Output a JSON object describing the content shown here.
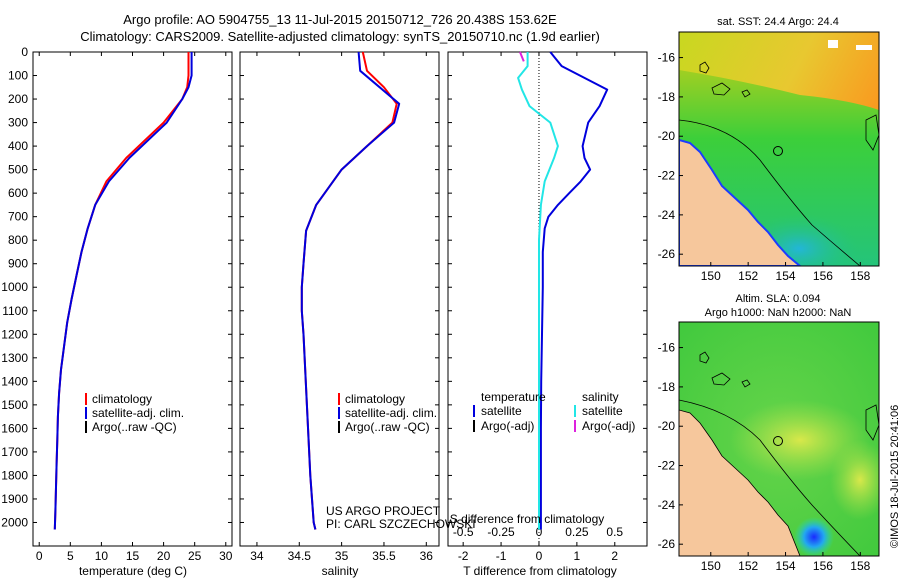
{
  "title": {
    "line1": "Argo profile: AO 5904755_13 11-Jul-2015 20150712_726 20.438S 153.62E",
    "line2": "Climatology: CARS2009. Satellite-adjusted climatology: synTS_20150710.nc (1.9d earlier)"
  },
  "side_stamp": "©IMOS 18-Jul-2015 20:41:06",
  "colors": {
    "climatology": "#ff0000",
    "satellite": "#0000dd",
    "argo": "#000000",
    "salinity_satellite": "#22e6e6",
    "salinity_argo": "#dd22dd",
    "land": "#f6c79c"
  },
  "chart_data": [
    {
      "id": "temperature",
      "type": "line",
      "xlabel": "temperature (deg C)",
      "ylabel": "",
      "xlim": [
        -1,
        31
      ],
      "ylim": [
        2100,
        0
      ],
      "xticks": [
        0,
        5,
        10,
        15,
        20,
        25,
        30
      ],
      "xtick_labels": [
        "0",
        "5",
        "10",
        "15",
        "20",
        "25",
        "30"
      ],
      "yticks": [
        0,
        100,
        200,
        300,
        400,
        500,
        600,
        700,
        800,
        900,
        1000,
        1100,
        1200,
        1300,
        1400,
        1500,
        1600,
        1700,
        1800,
        1900,
        2000
      ],
      "ytick_labels": [
        "0",
        "100",
        "200",
        "300",
        "400",
        "500",
        "600",
        "700",
        "800",
        "900",
        "1000",
        "1100",
        "1200",
        "1300",
        "1400",
        "1500",
        "1600",
        "1700",
        "1800",
        "1900",
        "2000"
      ],
      "legend": [
        "climatology",
        "satellite-adj. clim.",
        "Argo(..raw -QC)"
      ],
      "legend_position": "lower-center",
      "series": [
        {
          "name": "climatology",
          "color": "#ff0000",
          "x": [
            24.0,
            24.0,
            23.8,
            23.0,
            20.0,
            14.0,
            10.8,
            9.0,
            7.8,
            6.8,
            6.0,
            5.2,
            4.5,
            4.0,
            3.5,
            3.2,
            3.0,
            2.9,
            2.8,
            2.7,
            2.6,
            2.5
          ],
          "y": [
            0,
            100,
            150,
            200,
            300,
            450,
            550,
            650,
            750,
            850,
            950,
            1050,
            1150,
            1250,
            1350,
            1450,
            1550,
            1650,
            1750,
            1850,
            1950,
            2030
          ]
        },
        {
          "name": "satellite-adj. clim.",
          "color": "#0000dd",
          "x": [
            24.5,
            24.5,
            24.0,
            23.0,
            20.5,
            14.5,
            11.2,
            9.0,
            7.8,
            6.8,
            6.0,
            5.2,
            4.5,
            4.0,
            3.5,
            3.2,
            3.0,
            2.9,
            2.8,
            2.7,
            2.6,
            2.5
          ],
          "y": [
            0,
            100,
            150,
            200,
            300,
            450,
            550,
            650,
            750,
            850,
            950,
            1050,
            1150,
            1250,
            1350,
            1450,
            1550,
            1650,
            1750,
            1850,
            1950,
            2030
          ]
        }
      ]
    },
    {
      "id": "salinity",
      "type": "line",
      "xlabel": "salinity",
      "ylabel": "",
      "xlim": [
        33.8,
        36.15
      ],
      "ylim": [
        2100,
        0
      ],
      "xticks": [
        34,
        34.5,
        35,
        35.5,
        36
      ],
      "xtick_labels": [
        "34",
        "34.5",
        "35",
        "35.5",
        "36"
      ],
      "legend": [
        "climatology",
        "satellite-adj. clim.",
        "Argo(..raw -QC)"
      ],
      "legend_position": "lower-right",
      "annotation": [
        "US ARGO PROJECT",
        "PI: CARL SZCZECHOWSKI"
      ],
      "series": [
        {
          "name": "climatology",
          "color": "#ff0000",
          "x": [
            35.25,
            35.3,
            35.5,
            35.65,
            35.6,
            35.3,
            35.0,
            34.7,
            34.58,
            34.55,
            34.53,
            34.53,
            34.55,
            34.57,
            34.59,
            34.61,
            34.63,
            34.65,
            34.67,
            34.69
          ],
          "y": [
            0,
            80,
            150,
            220,
            300,
            400,
            500,
            650,
            760,
            900,
            1000,
            1100,
            1200,
            1350,
            1500,
            1650,
            1800,
            1900,
            2000,
            2030
          ]
        },
        {
          "name": "satellite-adj. clim.",
          "color": "#0000dd",
          "x": [
            35.2,
            35.22,
            35.45,
            35.68,
            35.62,
            35.3,
            35.0,
            34.7,
            34.58,
            34.55,
            34.53,
            34.53,
            34.55,
            34.57,
            34.59,
            34.61,
            34.63,
            34.65,
            34.67,
            34.69
          ],
          "y": [
            0,
            80,
            150,
            220,
            300,
            400,
            500,
            650,
            760,
            900,
            1000,
            1100,
            1200,
            1350,
            1500,
            1650,
            1800,
            1900,
            2000,
            2030
          ]
        }
      ]
    },
    {
      "id": "difference",
      "type": "line",
      "xlabel": "T difference from climatology",
      "xlabel2": "S difference from climatology",
      "xlim": [
        -2.4,
        2.85
      ],
      "ylim": [
        2100,
        0
      ],
      "xticks": [
        -2,
        -1,
        0,
        1,
        2
      ],
      "xtick_labels": [
        "-2",
        "-1",
        "0",
        "1",
        "2"
      ],
      "xticks2": [
        -2,
        -1,
        0,
        1,
        2
      ],
      "xtick_labels2": [
        "-0.5",
        "-0.25",
        "0",
        "0.25",
        "0.5"
      ],
      "legend_left": [
        "temperature",
        "satellite",
        "Argo(-adj)"
      ],
      "legend_right": [
        "salinity",
        "satellite",
        "Argo(-adj)"
      ],
      "legend_position": "lower-center",
      "series": [
        {
          "name": "temperature satellite",
          "color": "#0000dd",
          "x": [
            0.3,
            0.4,
            0.6,
            1.8,
            1.6,
            1.3,
            1.15,
            1.2,
            1.35,
            1.1,
            0.8,
            0.5,
            0.25,
            0.15,
            0.1,
            0.1,
            0.08,
            0.06,
            0.05,
            0.05,
            0.05,
            0.05
          ],
          "y": [
            0,
            20,
            60,
            160,
            230,
            300,
            400,
            450,
            500,
            550,
            600,
            650,
            700,
            750,
            850,
            1000,
            1200,
            1400,
            1600,
            1800,
            2000,
            2030
          ]
        },
        {
          "name": "salinity satellite",
          "color": "#22e6e6",
          "x": [
            -0.3,
            -0.3,
            -0.55,
            -0.45,
            -0.25,
            0.3,
            0.5,
            0.4,
            0.15,
            0.05,
            0.0,
            0.0,
            0.0,
            0.0
          ],
          "y": [
            0,
            60,
            110,
            160,
            230,
            300,
            400,
            450,
            550,
            650,
            800,
            1200,
            1600,
            2030
          ]
        },
        {
          "name": "salinity Argo(-adj)",
          "color": "#dd22dd",
          "x": [
            -0.5,
            -0.45,
            -0.4
          ],
          "y": [
            0,
            20,
            40
          ]
        }
      ]
    }
  ],
  "maps": [
    {
      "id": "sst-map",
      "title": "sat. SST: 24.4 Argo: 24.4",
      "xticks": [
        150,
        152,
        154,
        156,
        158
      ],
      "xtick_labels": [
        "150",
        "152",
        "154",
        "156",
        "158"
      ],
      "yticks": [
        -16,
        -18,
        -20,
        -22,
        -24,
        -26
      ],
      "ytick_labels": [
        "-16",
        "-18",
        "-20",
        "-22",
        "-24",
        "-26"
      ]
    },
    {
      "id": "sla-map",
      "title_line1": "Altim. SLA: 0.094",
      "title_line2": "Argo h1000: NaN h2000: NaN",
      "xticks": [
        150,
        152,
        154,
        156,
        158
      ],
      "xtick_labels": [
        "150",
        "152",
        "154",
        "156",
        "158"
      ],
      "yticks": [
        -16,
        -18,
        -20,
        -22,
        -24,
        -26
      ],
      "ytick_labels": [
        "-16",
        "-18",
        "-20",
        "-22",
        "-24",
        "-26"
      ]
    }
  ]
}
